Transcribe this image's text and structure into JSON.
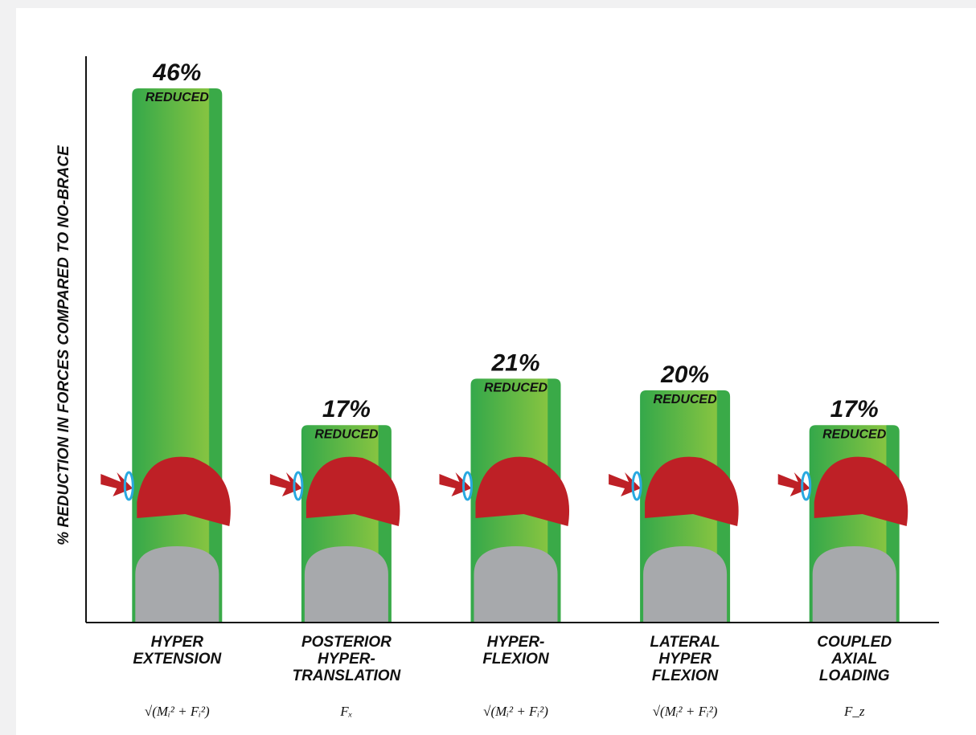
{
  "chart_data": {
    "type": "bar",
    "y_label": "% REDUCTION IN FORCES COMPARED TO NO-BRACE",
    "categories": [
      [
        "HYPER",
        "EXTENSION"
      ],
      [
        "POSTERIOR",
        "HYPER-",
        "TRANSLATION"
      ],
      [
        "HYPER-",
        "FLEXION"
      ],
      [
        "LATERAL",
        "HYPER",
        "FLEXION"
      ],
      [
        "COUPLED",
        "AXIAL",
        "LOADING"
      ]
    ],
    "values": [
      46,
      17,
      21,
      20,
      17
    ],
    "value_labels": [
      "46%",
      "17%",
      "21%",
      "20%",
      "17%"
    ],
    "sub_labels": [
      "REDUCED",
      "REDUCED",
      "REDUCED",
      "REDUCED",
      "REDUCED"
    ],
    "formulas": [
      "√(Mᵢ² + Fᵢ²)",
      "Fₓ",
      "√(Mᵢ² + Fᵢ²)",
      "√(Mᵢ² + Fᵢ²)",
      "F_z"
    ],
    "color": "#3aaa48",
    "ylim": [
      0,
      46
    ]
  }
}
